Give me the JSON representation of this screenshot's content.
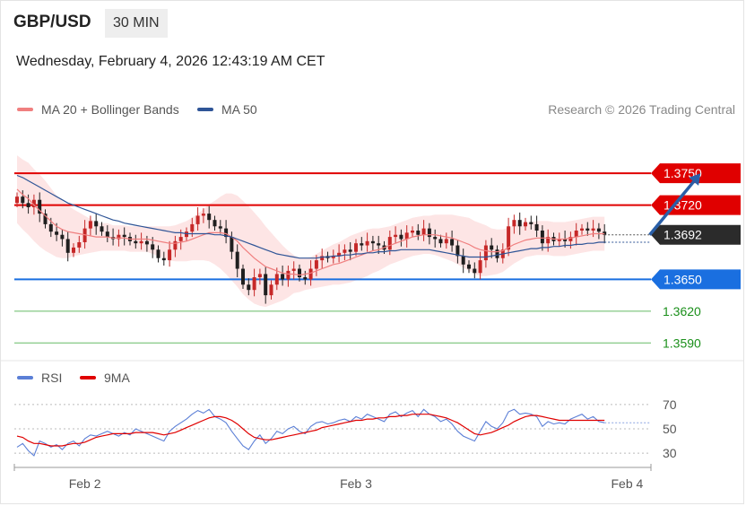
{
  "header": {
    "symbol": "GBP/USD",
    "timeframe": "30 MIN",
    "datetime": "Wednesday, February 4, 2026 12:43:19 AM CET",
    "copyright": "Research © 2026 Trading Central"
  },
  "colors": {
    "resistance": "#e00000",
    "support": "#1a6fe0",
    "target": "#1a8f1a",
    "last_price": "#2b2b2b",
    "ma20": "#f07f7f",
    "ma50": "#2f5597",
    "band_fill": "#fde0e0",
    "candle_up": "#c62828",
    "candle_down": "#1f1f1f",
    "rsi": "#5b7fd6",
    "rsi_ma": "#e00000",
    "arrow": "#2a5fa8"
  },
  "chart_data": [
    {
      "type": "candlestick",
      "legend": [
        {
          "name": "MA 20 + Bollinger Bands",
          "color": "#f07f7f"
        },
        {
          "name": "MA 50",
          "color": "#2f5597"
        }
      ],
      "ylim": [
        1.3575,
        1.3795
      ],
      "x_ticks": [
        {
          "label": "Feb 2",
          "index": 12
        },
        {
          "label": "Feb 3",
          "index": 60
        },
        {
          "label": "Feb 4",
          "index": 108
        }
      ],
      "last_price": {
        "value": 1.3692,
        "label": "1.3692"
      },
      "levels": [
        {
          "value": 1.375,
          "label": "1.3750",
          "kind": "resistance"
        },
        {
          "value": 1.372,
          "label": "1.3720",
          "kind": "resistance"
        },
        {
          "value": 1.365,
          "label": "1.3650",
          "kind": "support"
        },
        {
          "value": 1.362,
          "label": "1.3620",
          "kind": "target"
        },
        {
          "value": 1.359,
          "label": "1.3590",
          "kind": "target"
        }
      ],
      "forecast_arrow": {
        "from_index": 112,
        "from_value": 1.3692,
        "to_index": 121,
        "to_value": 1.375
      },
      "closes": [
        1.3728,
        1.3722,
        1.3718,
        1.3725,
        1.3712,
        1.3702,
        1.3695,
        1.3692,
        1.3688,
        1.3675,
        1.368,
        1.3685,
        1.3698,
        1.3705,
        1.37,
        1.3695,
        1.369,
        1.3688,
        1.3692,
        1.369,
        1.3686,
        1.3684,
        1.3686,
        1.3683,
        1.3678,
        1.367,
        1.3668,
        1.3678,
        1.3686,
        1.369,
        1.3695,
        1.3702,
        1.371,
        1.3712,
        1.3706,
        1.37,
        1.3698,
        1.369,
        1.3676,
        1.366,
        1.3645,
        1.364,
        1.3652,
        1.3655,
        1.3635,
        1.3645,
        1.3655,
        1.365,
        1.3658,
        1.366,
        1.3652,
        1.365,
        1.366,
        1.3668,
        1.3672,
        1.367,
        1.3672,
        1.3675,
        1.3678,
        1.3676,
        1.3684,
        1.3682,
        1.3686,
        1.3684,
        1.3682,
        1.3678,
        1.369,
        1.3692,
        1.3688,
        1.3694,
        1.3696,
        1.3692,
        1.3698,
        1.369,
        1.3688,
        1.3684,
        1.3688,
        1.3682,
        1.3672,
        1.3664,
        1.366,
        1.3656,
        1.3668,
        1.3682,
        1.3678,
        1.367,
        1.3678,
        1.37,
        1.3706,
        1.37,
        1.3704,
        1.3702,
        1.3696,
        1.3684,
        1.369,
        1.3686,
        1.3688,
        1.3686,
        1.369,
        1.3696,
        1.3698,
        1.3696,
        1.3698,
        1.3695,
        1.3692
      ],
      "ma20": [
        1.3735,
        1.373,
        1.3726,
        1.372,
        1.3715,
        1.371,
        1.3705,
        1.37,
        1.3697,
        1.3695,
        1.3694,
        1.3693,
        1.3692,
        1.3691,
        1.369,
        1.369,
        1.369,
        1.3689,
        1.3689,
        1.3689,
        1.3688,
        1.3688,
        1.3688,
        1.3688,
        1.3687,
        1.3686,
        1.3685,
        1.3684,
        1.3684,
        1.3685,
        1.3686,
        1.3688,
        1.369,
        1.3692,
        1.3694,
        1.3694,
        1.3694,
        1.3693,
        1.369,
        1.3686,
        1.368,
        1.3675,
        1.367,
        1.3666,
        1.3662,
        1.366,
        1.3658,
        1.3656,
        1.3655,
        1.3655,
        1.3654,
        1.3655,
        1.3656,
        1.3658,
        1.366,
        1.3662,
        1.3664,
        1.3665,
        1.3667,
        1.3669,
        1.3671,
        1.3673,
        1.3675,
        1.3677,
        1.3678,
        1.368,
        1.3682,
        1.3684,
        1.3686,
        1.3688,
        1.369,
        1.3691,
        1.3692,
        1.3692,
        1.3692,
        1.3691,
        1.369,
        1.3689,
        1.3687,
        1.3685,
        1.3683,
        1.368,
        1.3678,
        1.3677,
        1.3676,
        1.3676,
        1.3677,
        1.368,
        1.3683,
        1.3685,
        1.3687,
        1.3688,
        1.3689,
        1.3689,
        1.3689,
        1.3688,
        1.3688,
        1.3688,
        1.3689,
        1.369,
        1.3691,
        1.3692,
        1.3693,
        1.3693,
        1.3693
      ],
      "ma50": [
        1.3748,
        1.3746,
        1.3743,
        1.374,
        1.3737,
        1.3734,
        1.3731,
        1.3728,
        1.3725,
        1.3722,
        1.372,
        1.3718,
        1.3716,
        1.3714,
        1.3712,
        1.371,
        1.3708,
        1.3706,
        1.3705,
        1.3703,
        1.3702,
        1.3701,
        1.37,
        1.3699,
        1.3698,
        1.3697,
        1.3696,
        1.3695,
        1.3694,
        1.3694,
        1.3693,
        1.3693,
        1.3693,
        1.3693,
        1.3693,
        1.3692,
        1.3692,
        1.3691,
        1.369,
        1.3688,
        1.3686,
        1.3684,
        1.3682,
        1.368,
        1.3678,
        1.3676,
        1.3674,
        1.3673,
        1.3672,
        1.3671,
        1.367,
        1.367,
        1.367,
        1.367,
        1.3671,
        1.3671,
        1.3672,
        1.3672,
        1.3673,
        1.3673,
        1.3674,
        1.3674,
        1.3675,
        1.3675,
        1.3676,
        1.3676,
        1.3677,
        1.3677,
        1.3678,
        1.3678,
        1.3678,
        1.3678,
        1.3678,
        1.3678,
        1.3677,
        1.3676,
        1.3675,
        1.3674,
        1.3673,
        1.3672,
        1.3671,
        1.3671,
        1.3671,
        1.3671,
        1.3672,
        1.3673,
        1.3674,
        1.3675,
        1.3676,
        1.3677,
        1.3678,
        1.3679,
        1.3679,
        1.368,
        1.368,
        1.3681,
        1.3681,
        1.3682,
        1.3682,
        1.3683,
        1.3683,
        1.3684,
        1.3684,
        1.3685,
        1.3685
      ],
      "band_width": [
        0.0032,
        0.0033,
        0.0034,
        0.0034,
        0.0034,
        0.0033,
        0.0031,
        0.0029,
        0.0027,
        0.0025,
        0.0022,
        0.002,
        0.0018,
        0.0016,
        0.0014,
        0.0013,
        0.0013,
        0.0012,
        0.0012,
        0.0012,
        0.0012,
        0.0012,
        0.0012,
        0.0012,
        0.0013,
        0.0014,
        0.0015,
        0.0016,
        0.0017,
        0.0018,
        0.0019,
        0.002,
        0.0022,
        0.0024,
        0.0027,
        0.003,
        0.0034,
        0.0038,
        0.0041,
        0.0043,
        0.0044,
        0.0044,
        0.0043,
        0.0041,
        0.0038,
        0.0034,
        0.003,
        0.0026,
        0.0022,
        0.0018,
        0.0016,
        0.0015,
        0.0015,
        0.0016,
        0.0017,
        0.0018,
        0.0019,
        0.002,
        0.0021,
        0.0022,
        0.0022,
        0.0022,
        0.0022,
        0.0021,
        0.002,
        0.0019,
        0.0018,
        0.0018,
        0.0018,
        0.0018,
        0.0018,
        0.0018,
        0.0018,
        0.0018,
        0.0019,
        0.002,
        0.0021,
        0.0022,
        0.0023,
        0.0024,
        0.0025,
        0.0025,
        0.0025,
        0.0024,
        0.0022,
        0.0021,
        0.002,
        0.0019,
        0.0018,
        0.0017,
        0.0016,
        0.0016,
        0.0016,
        0.0016,
        0.0016,
        0.0016,
        0.0016,
        0.0016,
        0.0016,
        0.0016,
        0.0016,
        0.0016,
        0.0016,
        0.0016,
        0.0016
      ]
    },
    {
      "type": "line",
      "legend": [
        {
          "name": "RSI",
          "color": "#5b7fd6"
        },
        {
          "name": "9MA",
          "color": "#e00000"
        }
      ],
      "ylim": [
        22,
        78
      ],
      "y_ticks": [
        70,
        50,
        30
      ],
      "rsi": [
        35,
        38,
        32,
        28,
        40,
        38,
        35,
        37,
        33,
        38,
        40,
        36,
        42,
        45,
        44,
        46,
        48,
        46,
        44,
        47,
        45,
        50,
        48,
        46,
        44,
        42,
        40,
        48,
        52,
        55,
        58,
        62,
        65,
        63,
        66,
        60,
        58,
        55,
        48,
        42,
        36,
        33,
        40,
        45,
        38,
        42,
        48,
        46,
        50,
        52,
        48,
        46,
        52,
        55,
        56,
        54,
        55,
        57,
        58,
        56,
        60,
        58,
        62,
        60,
        58,
        56,
        62,
        64,
        60,
        63,
        65,
        60,
        66,
        62,
        60,
        56,
        58,
        54,
        48,
        44,
        42,
        40,
        48,
        56,
        52,
        50,
        55,
        64,
        66,
        62,
        63,
        62,
        60,
        52,
        56,
        54,
        55,
        54,
        58,
        60,
        62,
        58,
        60,
        56,
        55
      ],
      "rsi_ma": [
        44,
        43,
        40,
        38,
        38,
        37,
        36,
        36,
        36,
        37,
        38,
        38,
        39,
        41,
        43,
        44,
        45,
        46,
        46,
        46,
        46,
        47,
        47,
        47,
        47,
        46,
        45,
        46,
        47,
        49,
        51,
        53,
        55,
        57,
        59,
        60,
        60,
        59,
        57,
        54,
        50,
        46,
        43,
        42,
        41,
        41,
        42,
        43,
        44,
        45,
        46,
        47,
        48,
        49,
        51,
        52,
        53,
        54,
        55,
        56,
        57,
        57,
        58,
        58,
        59,
        59,
        60,
        60,
        61,
        61,
        62,
        62,
        62,
        62,
        61,
        60,
        59,
        57,
        55,
        52,
        49,
        46,
        45,
        46,
        47,
        49,
        51,
        53,
        56,
        58,
        60,
        61,
        61,
        60,
        59,
        58,
        57,
        57,
        57,
        57,
        57,
        57,
        57,
        57,
        57
      ]
    }
  ]
}
